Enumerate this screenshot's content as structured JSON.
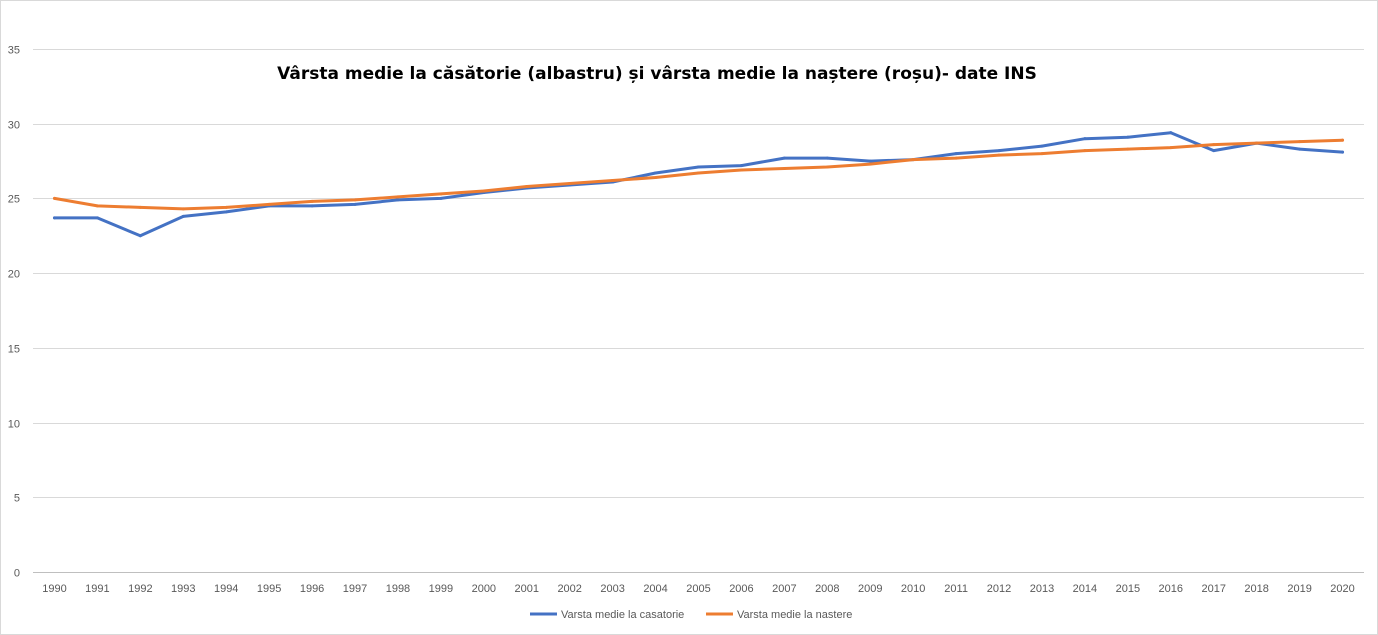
{
  "chart_data": {
    "type": "line",
    "title": "Vârsta medie la căsătorie (albastru) și vârsta medie la naștere (roșu)- date INS",
    "xlabel": "",
    "ylabel": "",
    "ylim": [
      0,
      35
    ],
    "yticks": [
      0,
      5,
      10,
      15,
      20,
      25,
      30,
      35
    ],
    "grid": true,
    "legend_position": "bottom",
    "categories": [
      "1990",
      "1991",
      "1992",
      "1993",
      "1994",
      "1995",
      "1996",
      "1997",
      "1998",
      "1999",
      "2000",
      "2001",
      "2002",
      "2003",
      "2004",
      "2005",
      "2006",
      "2007",
      "2008",
      "2009",
      "2010",
      "2011",
      "2012",
      "2013",
      "2014",
      "2015",
      "2016",
      "2017",
      "2018",
      "2019",
      "2020"
    ],
    "series": [
      {
        "name": "Varsta medie la casatorie",
        "color": "#4472c4",
        "values": [
          23.7,
          23.7,
          22.5,
          23.8,
          24.1,
          24.5,
          24.5,
          24.6,
          24.9,
          25.0,
          25.4,
          25.7,
          25.9,
          26.1,
          26.7,
          27.1,
          27.2,
          27.7,
          27.7,
          27.5,
          27.6,
          28.0,
          28.2,
          28.5,
          29.0,
          29.1,
          29.4,
          28.2,
          28.7,
          28.3,
          28.1
        ]
      },
      {
        "name": "Varsta medie la nastere",
        "color": "#ed7d31",
        "values": [
          25.0,
          24.5,
          24.4,
          24.3,
          24.4,
          24.6,
          24.8,
          24.9,
          25.1,
          25.3,
          25.5,
          25.8,
          26.0,
          26.2,
          26.4,
          26.7,
          26.9,
          27.0,
          27.1,
          27.3,
          27.6,
          27.7,
          27.9,
          28.0,
          28.2,
          28.3,
          28.4,
          28.6,
          28.7,
          28.8,
          28.9
        ]
      }
    ]
  }
}
